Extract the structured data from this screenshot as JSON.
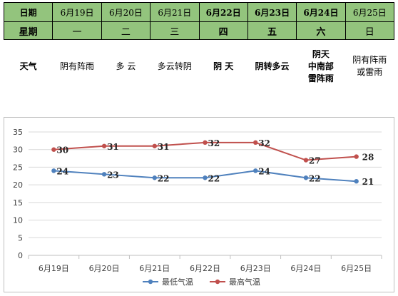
{
  "table": {
    "header_date": "日期",
    "header_week": "星期",
    "header_weather": "天气",
    "days": [
      {
        "date": "6月19日",
        "weekday": "一",
        "weather": "阴有阵雨",
        "bold": false
      },
      {
        "date": "6月20日",
        "weekday": "二",
        "weather": "多 云",
        "bold": false
      },
      {
        "date": "6月21日",
        "weekday": "三",
        "weather": "多云转阴",
        "bold": false
      },
      {
        "date": "6月22日",
        "weekday": "四",
        "weather": "阴 天",
        "bold": true
      },
      {
        "date": "6月23日",
        "weekday": "五",
        "weather": "阴转多云",
        "bold": true
      },
      {
        "date": "6月24日",
        "weekday": "六",
        "weather": "阴天\n中南部\n雷阵雨",
        "bold": true
      },
      {
        "date": "6月25日",
        "weekday": "日",
        "weather": "阴有阵雨\n或雷雨",
        "bold": false
      }
    ],
    "colors": {
      "header_bg": "#93c47d"
    }
  },
  "chart_data": {
    "type": "line",
    "categories": [
      "6月19日",
      "6月20日",
      "6月21日",
      "6月22日",
      "6月23日",
      "6月24日",
      "6月25日"
    ],
    "series": [
      {
        "name": "最低气温",
        "values": [
          24,
          23,
          22,
          22,
          24,
          22,
          21
        ],
        "color": "#4f81bd"
      },
      {
        "name": "最高气温",
        "values": [
          30,
          31,
          31,
          32,
          32,
          27,
          28
        ],
        "color": "#c0504d"
      }
    ],
    "ylim": [
      0,
      35
    ],
    "yticks": [
      0,
      5,
      10,
      15,
      20,
      25,
      30,
      35
    ],
    "grid": true,
    "legend": "bottom",
    "title": "",
    "xlabel": "",
    "ylabel": ""
  }
}
